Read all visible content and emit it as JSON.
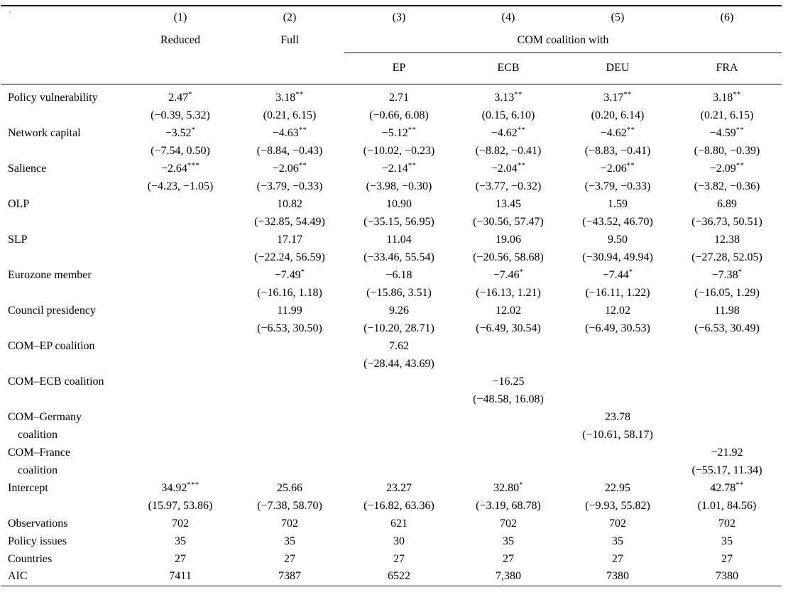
{
  "corner_mark": "´",
  "table": {
    "header": {
      "model_numbers": [
        "(1)",
        "(2)",
        "(3)",
        "(4)",
        "(5)",
        "(6)"
      ],
      "model_names": [
        "Reduced",
        "Full"
      ],
      "group_label": "COM coalition with",
      "group_columns": [
        "EP",
        "ECB",
        "DEU",
        "FRA"
      ]
    },
    "coefficient_rows": [
      {
        "label": "Policy vulnerability",
        "label_line2": "",
        "cells": [
          {
            "est": "2.47",
            "stars": "*",
            "ci": "(−0.39, 5.32)"
          },
          {
            "est": "3.18",
            "stars": "**",
            "ci": "(0.21, 6.15)"
          },
          {
            "est": "2.71",
            "stars": "",
            "ci": "(−0.66, 6.08)"
          },
          {
            "est": "3.13",
            "stars": "**",
            "ci": "(0.15, 6.10)"
          },
          {
            "est": "3.17",
            "stars": "**",
            "ci": "(0.20, 6.14)"
          },
          {
            "est": "3.18",
            "stars": "**",
            "ci": "(0.21, 6.15)"
          }
        ]
      },
      {
        "label": "Network capital",
        "label_line2": "",
        "cells": [
          {
            "est": "−3.52",
            "stars": "*",
            "ci": "(−7.54, 0.50)"
          },
          {
            "est": "−4.63",
            "stars": "**",
            "ci": "(−8.84, −0.43)"
          },
          {
            "est": "−5.12",
            "stars": "**",
            "ci": "(−10.02, −0.23)"
          },
          {
            "est": "−4.62",
            "stars": "**",
            "ci": "(−8.82, −0.41)"
          },
          {
            "est": "−4.62",
            "stars": "**",
            "ci": "(−8.83, −0.41)"
          },
          {
            "est": "−4.59",
            "stars": "**",
            "ci": "(−8.80, −0.39)"
          }
        ]
      },
      {
        "label": "Salience",
        "label_line2": "",
        "cells": [
          {
            "est": "−2.64",
            "stars": "***",
            "ci": "(−4.23, −1.05)"
          },
          {
            "est": "−2.06",
            "stars": "**",
            "ci": "(−3.79, −0.33)"
          },
          {
            "est": "−2.14",
            "stars": "**",
            "ci": "(−3.98, −0.30)"
          },
          {
            "est": "−2.04",
            "stars": "**",
            "ci": "(−3.77, −0.32)"
          },
          {
            "est": "−2.06",
            "stars": "**",
            "ci": "(−3.79, −0.33)"
          },
          {
            "est": "−2.09",
            "stars": "**",
            "ci": "(−3.82, −0.36)"
          }
        ]
      },
      {
        "label": "OLP",
        "label_line2": "",
        "cells": [
          {
            "est": "",
            "stars": "",
            "ci": ""
          },
          {
            "est": "10.82",
            "stars": "",
            "ci": "(−32.85, 54.49)"
          },
          {
            "est": "10.90",
            "stars": "",
            "ci": "(−35.15, 56.95)"
          },
          {
            "est": "13.45",
            "stars": "",
            "ci": "(−30.56, 57.47)"
          },
          {
            "est": "1.59",
            "stars": "",
            "ci": "(−43.52, 46.70)"
          },
          {
            "est": "6.89",
            "stars": "",
            "ci": "(−36.73, 50.51)"
          }
        ]
      },
      {
        "label": "SLP",
        "label_line2": "",
        "cells": [
          {
            "est": "",
            "stars": "",
            "ci": ""
          },
          {
            "est": "17.17",
            "stars": "",
            "ci": "(−22.24, 56.59)"
          },
          {
            "est": "11.04",
            "stars": "",
            "ci": "(−33.46, 55.54)"
          },
          {
            "est": "19.06",
            "stars": "",
            "ci": "(−20.56, 58.68)"
          },
          {
            "est": "9.50",
            "stars": "",
            "ci": "(−30.94, 49.94)"
          },
          {
            "est": "12.38",
            "stars": "",
            "ci": "(−27.28, 52.05)"
          }
        ]
      },
      {
        "label": "Eurozone member",
        "label_line2": "",
        "cells": [
          {
            "est": "",
            "stars": "",
            "ci": ""
          },
          {
            "est": "−7.49",
            "stars": "*",
            "ci": "(−16.16, 1.18)"
          },
          {
            "est": "−6.18",
            "stars": "",
            "ci": "(−15.86, 3.51)"
          },
          {
            "est": "−7.46",
            "stars": "*",
            "ci": "(−16.13, 1.21)"
          },
          {
            "est": "−7.44",
            "stars": "*",
            "ci": "(−16.11, 1.22)"
          },
          {
            "est": "−7.38",
            "stars": "*",
            "ci": "(−16.05, 1.29)"
          }
        ]
      },
      {
        "label": "Council presidency",
        "label_line2": "",
        "cells": [
          {
            "est": "",
            "stars": "",
            "ci": ""
          },
          {
            "est": "11.99",
            "stars": "",
            "ci": "(−6.53, 30.50)"
          },
          {
            "est": "9.26",
            "stars": "",
            "ci": "(−10.20, 28.71)"
          },
          {
            "est": "12.02",
            "stars": "",
            "ci": "(−6.49, 30.54)"
          },
          {
            "est": "12.02",
            "stars": "",
            "ci": "(−6.49, 30.53)"
          },
          {
            "est": "11.98",
            "stars": "",
            "ci": "(−6.53, 30.49)"
          }
        ]
      },
      {
        "label": "COM–EP coalition",
        "label_line2": "",
        "cells": [
          {
            "est": "",
            "stars": "",
            "ci": ""
          },
          {
            "est": "",
            "stars": "",
            "ci": ""
          },
          {
            "est": "7.62",
            "stars": "",
            "ci": "(−28.44, 43.69)"
          },
          {
            "est": "",
            "stars": "",
            "ci": ""
          },
          {
            "est": "",
            "stars": "",
            "ci": ""
          },
          {
            "est": "",
            "stars": "",
            "ci": ""
          }
        ]
      },
      {
        "label": "COM–ECB coalition",
        "label_line2": "",
        "cells": [
          {
            "est": "",
            "stars": "",
            "ci": ""
          },
          {
            "est": "",
            "stars": "",
            "ci": ""
          },
          {
            "est": "",
            "stars": "",
            "ci": ""
          },
          {
            "est": "−16.25",
            "stars": "",
            "ci": "(−48.58, 16.08)"
          },
          {
            "est": "",
            "stars": "",
            "ci": ""
          },
          {
            "est": "",
            "stars": "",
            "ci": ""
          }
        ]
      },
      {
        "label": "COM–Germany",
        "label_line2": "coalition",
        "cells": [
          {
            "est": "",
            "stars": "",
            "ci": ""
          },
          {
            "est": "",
            "stars": "",
            "ci": ""
          },
          {
            "est": "",
            "stars": "",
            "ci": ""
          },
          {
            "est": "",
            "stars": "",
            "ci": ""
          },
          {
            "est": "23.78",
            "stars": "",
            "ci": "(−10.61, 58.17)"
          },
          {
            "est": "",
            "stars": "",
            "ci": ""
          }
        ]
      },
      {
        "label": "COM–France",
        "label_line2": "coalition",
        "cells": [
          {
            "est": "",
            "stars": "",
            "ci": ""
          },
          {
            "est": "",
            "stars": "",
            "ci": ""
          },
          {
            "est": "",
            "stars": "",
            "ci": ""
          },
          {
            "est": "",
            "stars": "",
            "ci": ""
          },
          {
            "est": "",
            "stars": "",
            "ci": ""
          },
          {
            "est": "−21.92",
            "stars": "",
            "ci": "(−55.17, 11.34)"
          }
        ]
      },
      {
        "label": "Intercept",
        "label_line2": "",
        "cells": [
          {
            "est": "34.92",
            "stars": "***",
            "ci": "(15.97, 53.86)"
          },
          {
            "est": "25.66",
            "stars": "",
            "ci": "(−7.38, 58.70)"
          },
          {
            "est": "23.27",
            "stars": "",
            "ci": "(−16.82, 63.36)"
          },
          {
            "est": "32.80",
            "stars": "*",
            "ci": "(−3.19, 68.78)"
          },
          {
            "est": "22.95",
            "stars": "",
            "ci": "(−9.93, 55.82)"
          },
          {
            "est": "42.78",
            "stars": "**",
            "ci": "(1.01, 84.56)"
          }
        ]
      }
    ],
    "stat_rows": [
      {
        "label": "Observations",
        "values": [
          "702",
          "702",
          "621",
          "702",
          "702",
          "702"
        ]
      },
      {
        "label": "Policy issues",
        "values": [
          "35",
          "35",
          "30",
          "35",
          "35",
          "35"
        ]
      },
      {
        "label": "Countries",
        "values": [
          "27",
          "27",
          "27",
          "27",
          "27",
          "27"
        ]
      },
      {
        "label": "AIC",
        "values": [
          "7411",
          "7387",
          "6522",
          "7,380",
          "7380",
          "7380"
        ]
      }
    ]
  }
}
